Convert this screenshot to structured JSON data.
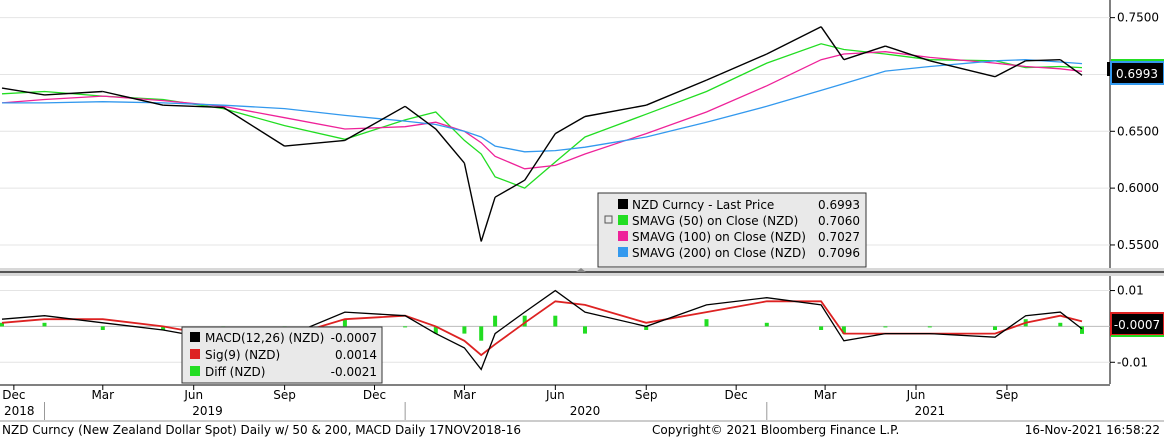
{
  "chart_data": [
    {
      "type": "line",
      "panel": "price",
      "yticks": [
        "0.7500",
        "0.7000",
        "0.6500",
        "0.6000",
        "0.5500"
      ],
      "ylim": [
        0.535,
        0.762
      ],
      "last_price_badge": "0.6993",
      "legend": {
        "rows": [
          {
            "label": "NZD Curncy - Last Price",
            "value": "0.6993",
            "color": "#000000"
          },
          {
            "label": "SMAVG (50)  on Close (NZD)",
            "value": "0.7060",
            "color": "#22dd22"
          },
          {
            "label": "SMAVG (100)  on Close (NZD)",
            "value": "0.7027",
            "color": "#ee2299"
          },
          {
            "label": "SMAVG (200)  on Close (NZD)",
            "value": "0.7096",
            "color": "#3399ee"
          }
        ]
      },
      "x": [
        "2018-11-19",
        "2019-01-01",
        "2019-03-01",
        "2019-05-01",
        "2019-07-01",
        "2019-09-01",
        "2019-11-01",
        "2020-01-01",
        "2020-02-01",
        "2020-03-01",
        "2020-03-18",
        "2020-04-01",
        "2020-05-01",
        "2020-06-01",
        "2020-07-01",
        "2020-09-01",
        "2020-11-01",
        "2021-01-01",
        "2021-02-25",
        "2021-03-20",
        "2021-05-01",
        "2021-06-15",
        "2021-08-20",
        "2021-09-20",
        "2021-10-25",
        "2021-11-16"
      ],
      "series": [
        {
          "name": "NZD Curncy - Last Price",
          "color": "#000000",
          "values": [
            0.688,
            0.682,
            0.685,
            0.673,
            0.671,
            0.637,
            0.642,
            0.672,
            0.652,
            0.622,
            0.553,
            0.592,
            0.607,
            0.648,
            0.663,
            0.673,
            0.695,
            0.718,
            0.742,
            0.713,
            0.725,
            0.712,
            0.698,
            0.712,
            0.713,
            0.6993
          ]
        },
        {
          "name": "SMAVG (50)  on Close (NZD)",
          "color": "#22dd22",
          "values": [
            0.683,
            0.685,
            0.681,
            0.678,
            0.67,
            0.655,
            0.643,
            0.66,
            0.667,
            0.642,
            0.63,
            0.61,
            0.6,
            0.623,
            0.645,
            0.665,
            0.685,
            0.71,
            0.727,
            0.722,
            0.718,
            0.713,
            0.712,
            0.706,
            0.707,
            0.706
          ]
        },
        {
          "name": "SMAVG (100)  on Close (NZD)",
          "color": "#ee2299",
          "values": [
            0.675,
            0.678,
            0.681,
            0.677,
            0.672,
            0.662,
            0.652,
            0.654,
            0.658,
            0.65,
            0.64,
            0.628,
            0.617,
            0.62,
            0.63,
            0.648,
            0.667,
            0.69,
            0.713,
            0.718,
            0.72,
            0.715,
            0.71,
            0.707,
            0.705,
            0.7027
          ]
        },
        {
          "name": "SMAVG (200)  on Close (NZD)",
          "color": "#3399ee",
          "values": [
            0.675,
            0.675,
            0.676,
            0.675,
            0.673,
            0.67,
            0.664,
            0.659,
            0.656,
            0.65,
            0.645,
            0.637,
            0.632,
            0.633,
            0.636,
            0.645,
            0.658,
            0.672,
            0.686,
            0.692,
            0.703,
            0.707,
            0.712,
            0.713,
            0.711,
            0.7096
          ]
        }
      ]
    },
    {
      "type": "line",
      "panel": "macd",
      "yticks": [
        "0.01",
        "-0.01"
      ],
      "ylim": [
        -0.0155,
        0.0135
      ],
      "last_macd_badge": "-0.0007",
      "legend": {
        "rows": [
          {
            "label": "MACD(12,26) (NZD)",
            "value": "-0.0007",
            "color": "#000000"
          },
          {
            "label": "Sig(9) (NZD)",
            "value": "0.0014",
            "color": "#dd2222"
          },
          {
            "label": "Diff (NZD)",
            "value": "-0.0021",
            "color": "#22dd22"
          }
        ]
      },
      "x": [
        "2018-11-19",
        "2019-01-01",
        "2019-03-01",
        "2019-05-01",
        "2019-07-01",
        "2019-09-01",
        "2019-11-01",
        "2020-01-01",
        "2020-02-01",
        "2020-03-01",
        "2020-03-18",
        "2020-04-01",
        "2020-05-01",
        "2020-06-01",
        "2020-07-01",
        "2020-09-01",
        "2020-11-01",
        "2021-01-01",
        "2021-02-25",
        "2021-03-20",
        "2021-05-01",
        "2021-06-15",
        "2021-08-20",
        "2021-09-20",
        "2021-10-25",
        "2021-11-16"
      ],
      "series": [
        {
          "name": "MACD(12,26) (NZD)",
          "color": "#000000",
          "values": [
            0.002,
            0.003,
            0.001,
            -0.001,
            -0.004,
            -0.003,
            0.004,
            0.003,
            -0.002,
            -0.006,
            -0.012,
            -0.002,
            0.004,
            0.01,
            0.004,
            0.0,
            0.006,
            0.008,
            0.006,
            -0.004,
            -0.002,
            -0.002,
            -0.003,
            0.003,
            0.004,
            -0.0007
          ]
        },
        {
          "name": "Sig(9) (NZD)",
          "color": "#dd2222",
          "values": [
            0.001,
            0.002,
            0.002,
            0.0,
            -0.003,
            -0.003,
            0.002,
            0.003,
            0.0,
            -0.004,
            -0.008,
            -0.005,
            0.001,
            0.007,
            0.006,
            0.001,
            0.004,
            0.007,
            0.007,
            -0.002,
            -0.002,
            -0.002,
            -0.002,
            0.001,
            0.003,
            0.0014
          ]
        },
        {
          "name": "Diff (NZD)",
          "color": "#22dd22",
          "values": [
            0.001,
            0.001,
            -0.001,
            -0.001,
            -0.001,
            0.0,
            0.002,
            0.0,
            -0.002,
            -0.002,
            -0.004,
            0.003,
            0.003,
            0.003,
            -0.002,
            -0.001,
            0.002,
            0.001,
            -0.001,
            -0.002,
            0.0,
            0.0,
            -0.001,
            0.002,
            0.001,
            -0.0021
          ]
        }
      ]
    }
  ],
  "xaxis": {
    "months": [
      "Dec",
      "Mar",
      "Jun",
      "Sep",
      "Dec",
      "Mar",
      "Jun",
      "Sep",
      "Dec",
      "Mar",
      "Jun",
      "Sep"
    ],
    "years": [
      "2018",
      "2019",
      "2020",
      "2021"
    ]
  },
  "footer": {
    "left": "NZD Curncy (New Zealand Dollar Spot) Daily w/ 50 & 200, MACD  Daily 17NOV2018-16",
    "center": "Copyright© 2021 Bloomberg Finance L.P.",
    "right": "16-Nov-2021 16:58:22"
  }
}
